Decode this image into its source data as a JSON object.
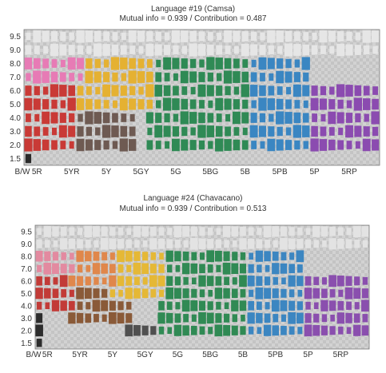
{
  "charts": [
    {
      "title": "Language #19 (Camsa)",
      "subtitle": "Mutual info = 0.939 / Contribution = 0.487"
    },
    {
      "title": "Language #24 (Chavacano)",
      "subtitle": "Mutual info = 0.939 / Contribution = 0.513"
    }
  ],
  "colors": {
    "background_checker_a": "#c4c4c4",
    "background_checker_b": "#d2d2d2",
    "camsa": {
      "white": "#e6e6e6",
      "pink": "#e77bb5",
      "yellow": "#e5b132",
      "green": "#2f8a55",
      "blue": "#3a86c2",
      "purple": "#8b4bb0",
      "red": "#c93a36",
      "brown": "#6e5a52",
      "gray": "#6a6a6a",
      "black": "#2a2a2a"
    },
    "chavacano": {
      "white": "#e3e3e3",
      "pink": "#e38aa0",
      "orange": "#e0874b",
      "yellow": "#e5b836",
      "green": "#308a54",
      "blue": "#3c86c1",
      "purple": "#8a4fae",
      "red": "#c23b37",
      "brown": "#8a5a38",
      "gray": "#505050",
      "black": "#2d2d2d"
    }
  },
  "chart_data": [
    {
      "type": "heatmap",
      "title": "Language #19 (Camsa)",
      "subtitle": "Mutual info = 0.939 / Contribution = 0.487",
      "x_tick_labels": [
        "B/W",
        "5R",
        "5YR",
        "5Y",
        "5GY",
        "5G",
        "5BG",
        "5B",
        "5PB",
        "5P",
        "5RP"
      ],
      "y_tick_labels": [
        "9.5",
        "9.0",
        "8.0",
        "7.0",
        "6.0",
        "5.0",
        "4.0",
        "3.0",
        "2.0",
        "1.5"
      ],
      "columns": 41,
      "rows": 10,
      "category_regions": [
        {
          "color": "white",
          "hue_from": 0,
          "hue_to": 40,
          "values": [
            "9.5",
            "9.0"
          ]
        },
        {
          "color": "pink",
          "hue_from": 0,
          "hue_to": 6,
          "values": [
            "9.0",
            "8.0",
            "7.0"
          ]
        },
        {
          "color": "yellow",
          "hue_from": 6,
          "hue_to": 14,
          "values": [
            "9.0",
            "8.0",
            "7.0",
            "6.0",
            "5.0"
          ]
        },
        {
          "color": "green",
          "hue_from": 14,
          "hue_to": 25,
          "values": [
            "9.0",
            "8.0",
            "7.0",
            "6.0",
            "5.0",
            "4.0",
            "3.0",
            "2.0"
          ]
        },
        {
          "color": "blue",
          "hue_from": 25,
          "hue_to": 32,
          "values": [
            "8.0",
            "7.0",
            "6.0",
            "5.0",
            "4.0",
            "3.0",
            "2.0"
          ]
        },
        {
          "color": "purple",
          "hue_from": 32,
          "hue_to": 40,
          "values": [
            "6.0",
            "5.0",
            "4.0",
            "3.0",
            "2.0"
          ]
        },
        {
          "color": "red",
          "hue_from": 0,
          "hue_to": 5,
          "values": [
            "6.0",
            "5.0",
            "4.0",
            "3.0",
            "2.0"
          ]
        },
        {
          "color": "brown",
          "hue_from": 5,
          "hue_to": 12,
          "values": [
            "4.0",
            "3.0",
            "2.0"
          ]
        },
        {
          "color": "black",
          "hue_from": 0,
          "hue_to": 0,
          "values": [
            "2.0",
            "1.5"
          ]
        }
      ]
    },
    {
      "type": "heatmap",
      "title": "Language #24 (Chavacano)",
      "subtitle": "Mutual info = 0.939 / Contribution = 0.513",
      "x_tick_labels": [
        "B/W",
        "5R",
        "5YR",
        "5Y",
        "5GY",
        "5G",
        "5BG",
        "5B",
        "5PB",
        "5P",
        "5RP"
      ],
      "y_tick_labels": [
        "9.5",
        "9.0",
        "8.0",
        "7.0",
        "6.0",
        "5.0",
        "4.0",
        "3.0",
        "2.0",
        "1.5"
      ],
      "columns": 41,
      "rows": 10,
      "category_regions": [
        {
          "color": "white",
          "hue_from": 0,
          "hue_to": 40,
          "values": [
            "9.5",
            "9.0"
          ]
        },
        {
          "color": "pink",
          "hue_from": 0,
          "hue_to": 4,
          "values": [
            "8.0",
            "7.0"
          ]
        },
        {
          "color": "orange",
          "hue_from": 4,
          "hue_to": 9,
          "values": [
            "8.0",
            "7.0",
            "6.0"
          ]
        },
        {
          "color": "yellow",
          "hue_from": 9,
          "hue_to": 15,
          "values": [
            "9.0",
            "8.0",
            "7.0",
            "6.0",
            "5.0"
          ]
        },
        {
          "color": "green",
          "hue_from": 15,
          "hue_to": 25,
          "values": [
            "8.0",
            "7.0",
            "6.0",
            "5.0",
            "4.0",
            "3.0",
            "2.0"
          ]
        },
        {
          "color": "blue",
          "hue_from": 25,
          "hue_to": 32,
          "values": [
            "8.0",
            "7.0",
            "6.0",
            "5.0",
            "4.0",
            "3.0",
            "2.0"
          ]
        },
        {
          "color": "purple",
          "hue_from": 32,
          "hue_to": 40,
          "values": [
            "6.0",
            "5.0",
            "4.0",
            "3.0",
            "2.0"
          ]
        },
        {
          "color": "red",
          "hue_from": 0,
          "hue_to": 4,
          "values": [
            "6.0",
            "5.0",
            "4.0"
          ]
        },
        {
          "color": "brown",
          "hue_from": 4,
          "hue_to": 11,
          "values": [
            "5.0",
            "4.0",
            "3.0"
          ]
        },
        {
          "color": "gray",
          "hue_from": 11,
          "hue_to": 15,
          "values": [
            "2.0"
          ]
        },
        {
          "color": "black",
          "hue_from": 0,
          "hue_to": 0,
          "values": [
            "6.0",
            "5.0",
            "4.0",
            "3.0",
            "2.0",
            "1.5"
          ]
        }
      ]
    }
  ]
}
